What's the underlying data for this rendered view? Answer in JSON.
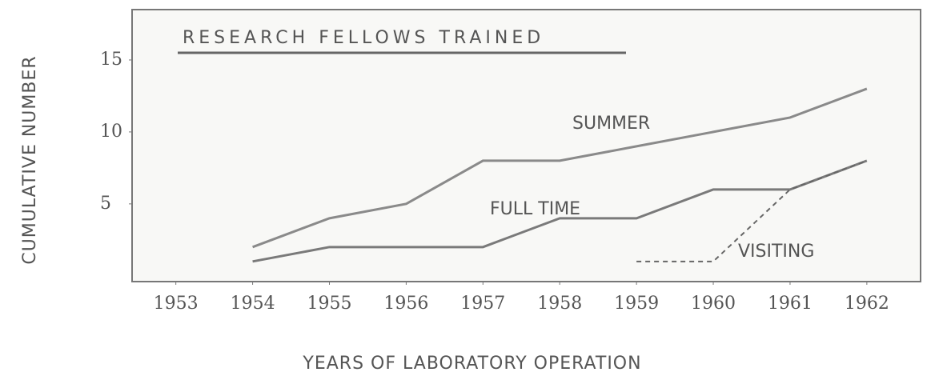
{
  "chart_data": {
    "type": "line",
    "title": "RESEARCH FELLOWS TRAINED",
    "x_label": "YEARS OF LABORATORY OPERATION",
    "y_label": "CUMULATIVE NUMBER",
    "x": [
      1954,
      1955,
      1956,
      1957,
      1958,
      1959,
      1960,
      1961,
      1962
    ],
    "series": [
      {
        "name": "SUMMER",
        "color": "#8a8a8a",
        "dashed": false,
        "values": [
          2,
          4,
          5,
          8,
          8,
          9,
          10,
          11,
          13
        ]
      },
      {
        "name": "FULL TIME",
        "color": "#7a7a7a",
        "dashed": false,
        "values": [
          1,
          2,
          2,
          2,
          4,
          4,
          6,
          6,
          8
        ]
      },
      {
        "name": "VISITING",
        "color": "#666666",
        "dashed": true,
        "values": [
          null,
          null,
          null,
          null,
          null,
          1,
          1,
          6,
          8
        ]
      }
    ],
    "xlim": [
      1952.43,
      1962.7
    ],
    "xticks": [
      1953,
      1954,
      1955,
      1956,
      1957,
      1958,
      1959,
      1960,
      1961,
      1962
    ],
    "ylim": [
      -0.4,
      18.5
    ],
    "yticks": [
      5,
      10,
      15
    ]
  }
}
